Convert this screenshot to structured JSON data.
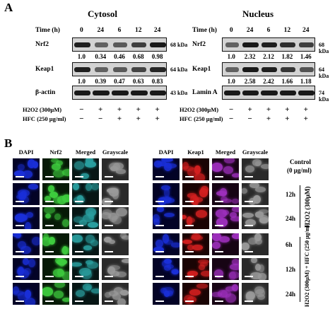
{
  "panel_a": {
    "letter": "A",
    "cytosol": {
      "title": "Cytosol",
      "time_label": "Time (h)",
      "times": [
        "0",
        "24",
        "6",
        "12",
        "24"
      ],
      "rows": [
        {
          "protein": "Nrf2",
          "kda": "68 kDa",
          "quant": [
            "1.0",
            "0.34",
            "0.46",
            "0.68",
            "0.98"
          ],
          "intensity": [
            0.9,
            0.45,
            0.5,
            0.7,
            0.95
          ]
        },
        {
          "protein": "Keap1",
          "kda": "64 kDa",
          "quant": [
            "1.0",
            "0.39",
            "0.47",
            "0.63",
            "0.83"
          ],
          "intensity": [
            0.9,
            0.45,
            0.5,
            0.65,
            0.85
          ]
        },
        {
          "protein": "β-actin",
          "kda": "43 kDa",
          "quant": [],
          "intensity": [
            0.95,
            0.95,
            0.95,
            0.95,
            0.95
          ]
        }
      ]
    },
    "nucleus": {
      "title": "Nucleus",
      "time_label": "Time (h)",
      "times": [
        "0",
        "24",
        "6",
        "12",
        "24"
      ],
      "rows": [
        {
          "protein": "Nrf2",
          "kda": "68 kDa",
          "quant": [
            "1.0",
            "2.32",
            "2.12",
            "1.82",
            "1.46"
          ],
          "intensity": [
            0.45,
            0.95,
            0.9,
            0.8,
            0.7
          ]
        },
        {
          "protein": "Keap1",
          "kda": "64 kDa",
          "quant": [
            "1.0",
            "2.58",
            "2.42",
            "1.66",
            "1.18"
          ],
          "intensity": [
            0.45,
            0.95,
            0.9,
            0.75,
            0.55
          ]
        },
        {
          "protein": "Lamin A",
          "kda": "74 kDa",
          "quant": [],
          "intensity": [
            0.95,
            0.95,
            0.95,
            0.95,
            0.95
          ]
        }
      ]
    },
    "treatments": [
      {
        "label": "H2O2 (300μM)",
        "signs": [
          "−",
          "+",
          "+",
          "+",
          "+"
        ]
      },
      {
        "label": "HFC (250 μg/ml)",
        "signs": [
          "−",
          "−",
          "+",
          "+",
          "+"
        ]
      }
    ]
  },
  "panel_b": {
    "letter": "B",
    "left_columns": [
      "DAPI",
      "Nrf2",
      "Merged",
      "Grayscale"
    ],
    "right_columns": [
      "DAPI",
      "Keap1",
      "Merged",
      "Grayscale"
    ],
    "control_label": "Control",
    "control_sub": "(0 μg/ml)",
    "h2o2_times": [
      "12h",
      "24h"
    ],
    "h2o2_group": "H2O2 (300μM)",
    "combo_times": [
      "6h",
      "12h",
      "24h"
    ],
    "combo_group": "H2O2 (300μM) + HFC (250 μg/ml)",
    "colors": {
      "dapi": "#1a2fd8",
      "nrf2": "#3fcf3f",
      "keap1": "#d42020",
      "merge_g": "#2aa0a0",
      "merge_r": "#a030c0",
      "gray": "#9a9a9a"
    }
  }
}
